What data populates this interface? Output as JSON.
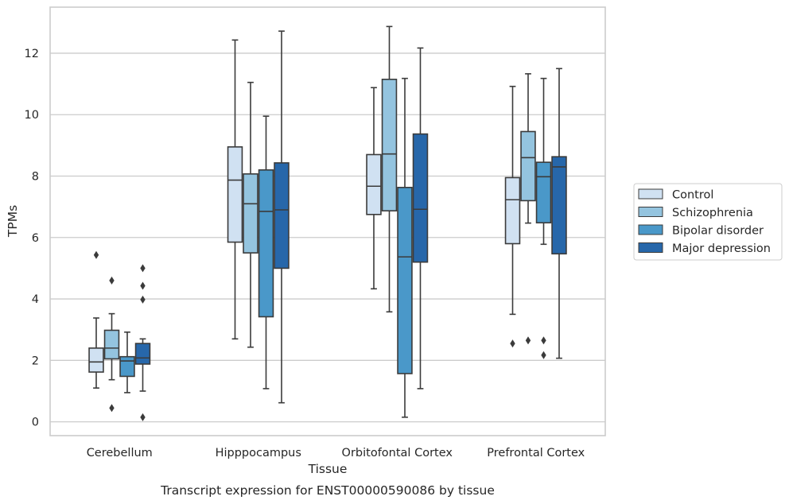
{
  "chart_data": {
    "type": "boxplot",
    "title": "Transcript expression for ENST00000590086 by tissue",
    "xlabel": "Tissue",
    "ylabel": "TPMs",
    "ylim": [
      -0.45,
      13.5
    ],
    "yticks": [
      0,
      2,
      4,
      6,
      8,
      10,
      12
    ],
    "grid": "horizontal",
    "legend_position": "right",
    "categories": [
      "Cerebellum",
      "Hipppocampus",
      "Orbitofontal Cortex",
      "Prefrontal Cortex"
    ],
    "series": [
      {
        "name": "Control",
        "color": "#d0e1f2",
        "boxes": [
          {
            "whislo": 1.1,
            "q1": 1.62,
            "med": 1.95,
            "q3": 2.4,
            "whishi": 3.38,
            "fliers": [
              5.43
            ]
          },
          {
            "whislo": 2.7,
            "q1": 5.85,
            "med": 7.87,
            "q3": 8.95,
            "whishi": 12.43,
            "fliers": []
          },
          {
            "whislo": 4.33,
            "q1": 6.75,
            "med": 7.67,
            "q3": 8.7,
            "whishi": 10.88,
            "fliers": []
          },
          {
            "whislo": 3.5,
            "q1": 5.8,
            "med": 7.23,
            "q3": 7.95,
            "whishi": 10.92,
            "fliers": [
              2.55
            ]
          }
        ]
      },
      {
        "name": "Schizophrenia",
        "color": "#94c4df",
        "boxes": [
          {
            "whislo": 1.37,
            "q1": 2.05,
            "med": 2.4,
            "q3": 2.98,
            "whishi": 3.52,
            "fliers": [
              4.6,
              0.45
            ]
          },
          {
            "whislo": 2.43,
            "q1": 5.5,
            "med": 7.1,
            "q3": 8.07,
            "whishi": 11.05,
            "fliers": []
          },
          {
            "whislo": 3.58,
            "q1": 6.87,
            "med": 8.72,
            "q3": 11.15,
            "whishi": 12.87,
            "fliers": []
          },
          {
            "whislo": 6.47,
            "q1": 7.2,
            "med": 8.6,
            "q3": 9.45,
            "whishi": 11.33,
            "fliers": [
              2.65
            ]
          }
        ]
      },
      {
        "name": "Bipolar disorder",
        "color": "#4a98c9",
        "boxes": [
          {
            "whislo": 0.95,
            "q1": 1.48,
            "med": 1.98,
            "q3": 2.12,
            "whishi": 2.92,
            "fliers": []
          },
          {
            "whislo": 1.08,
            "q1": 3.42,
            "med": 6.85,
            "q3": 8.2,
            "whishi": 9.95,
            "fliers": []
          },
          {
            "whislo": 0.15,
            "q1": 1.57,
            "med": 5.37,
            "q3": 7.63,
            "whishi": 11.18,
            "fliers": []
          },
          {
            "whislo": 5.78,
            "q1": 6.48,
            "med": 7.98,
            "q3": 8.45,
            "whishi": 11.18,
            "fliers": [
              2.65,
              2.17
            ]
          }
        ]
      },
      {
        "name": "Major depression",
        "color": "#2767aa",
        "boxes": [
          {
            "whislo": 1.0,
            "q1": 1.88,
            "med": 2.08,
            "q3": 2.55,
            "whishi": 2.7,
            "fliers": [
              5.0,
              4.43,
              3.98,
              0.15
            ]
          },
          {
            "whislo": 0.62,
            "q1": 5.0,
            "med": 6.9,
            "q3": 8.43,
            "whishi": 12.72,
            "fliers": []
          },
          {
            "whislo": 1.08,
            "q1": 5.2,
            "med": 6.92,
            "q3": 9.37,
            "whishi": 12.17,
            "fliers": []
          },
          {
            "whislo": 2.07,
            "q1": 5.47,
            "med": 8.3,
            "q3": 8.63,
            "whishi": 11.5,
            "fliers": []
          }
        ]
      }
    ]
  }
}
